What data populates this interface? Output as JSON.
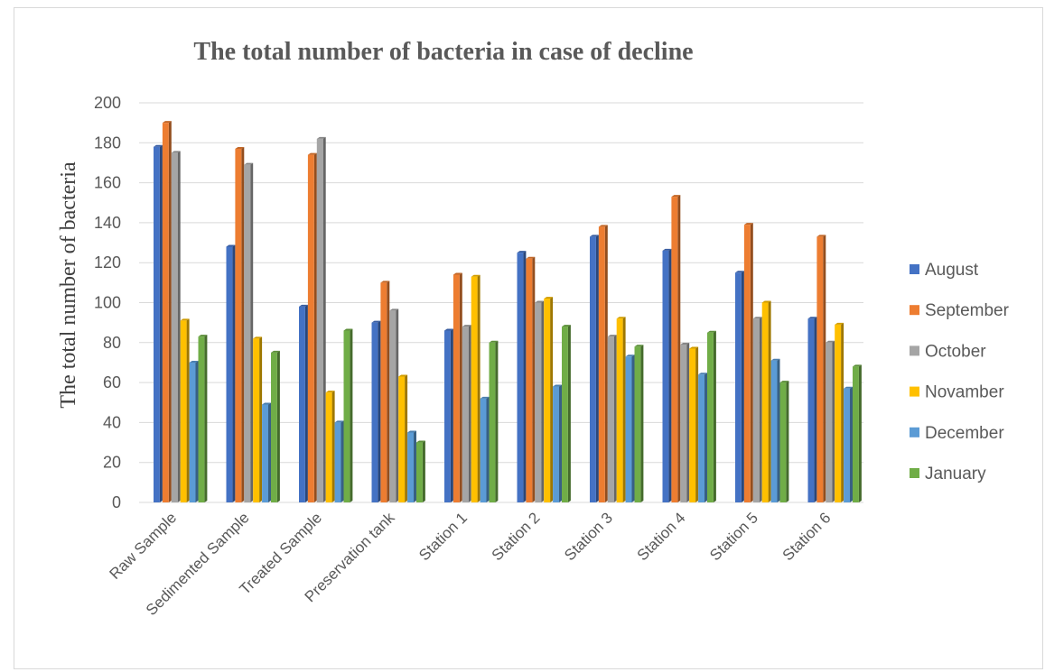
{
  "chart_data": {
    "type": "bar",
    "title": "The total number of bacteria in case of decline",
    "xlabel": "",
    "ylabel": "The total number of bacteria",
    "ylim": [
      0,
      200
    ],
    "yticks": [
      0,
      20,
      40,
      60,
      80,
      100,
      120,
      140,
      160,
      180,
      200
    ],
    "grid": true,
    "legend_position": "right",
    "categories": [
      "Raw Sample",
      "Sedimented Sample",
      "Treated Sample",
      "Preservation tank",
      "Station 1",
      "Station 2",
      "Station 3",
      "Station 4",
      "Station 5",
      "Station 6"
    ],
    "series": [
      {
        "name": "August",
        "color": "#4472c4",
        "values": [
          178,
          128,
          98,
          90,
          86,
          125,
          133,
          126,
          115,
          92
        ]
      },
      {
        "name": "September",
        "color": "#ed7d31",
        "values": [
          190,
          177,
          174,
          110,
          114,
          122,
          138,
          153,
          139,
          133
        ]
      },
      {
        "name": "October",
        "color": "#a5a5a5",
        "values": [
          175,
          169,
          182,
          96,
          88,
          100,
          83,
          79,
          92,
          80
        ]
      },
      {
        "name": "Novamber",
        "color": "#ffc000",
        "values": [
          91,
          82,
          55,
          63,
          113,
          102,
          92,
          77,
          100,
          89
        ]
      },
      {
        "name": "December",
        "color": "#5b9bd5",
        "values": [
          70,
          49,
          40,
          35,
          52,
          58,
          73,
          64,
          71,
          57
        ]
      },
      {
        "name": "January",
        "color": "#70ad47",
        "values": [
          83,
          75,
          86,
          30,
          80,
          88,
          78,
          85,
          60,
          68
        ]
      }
    ]
  }
}
